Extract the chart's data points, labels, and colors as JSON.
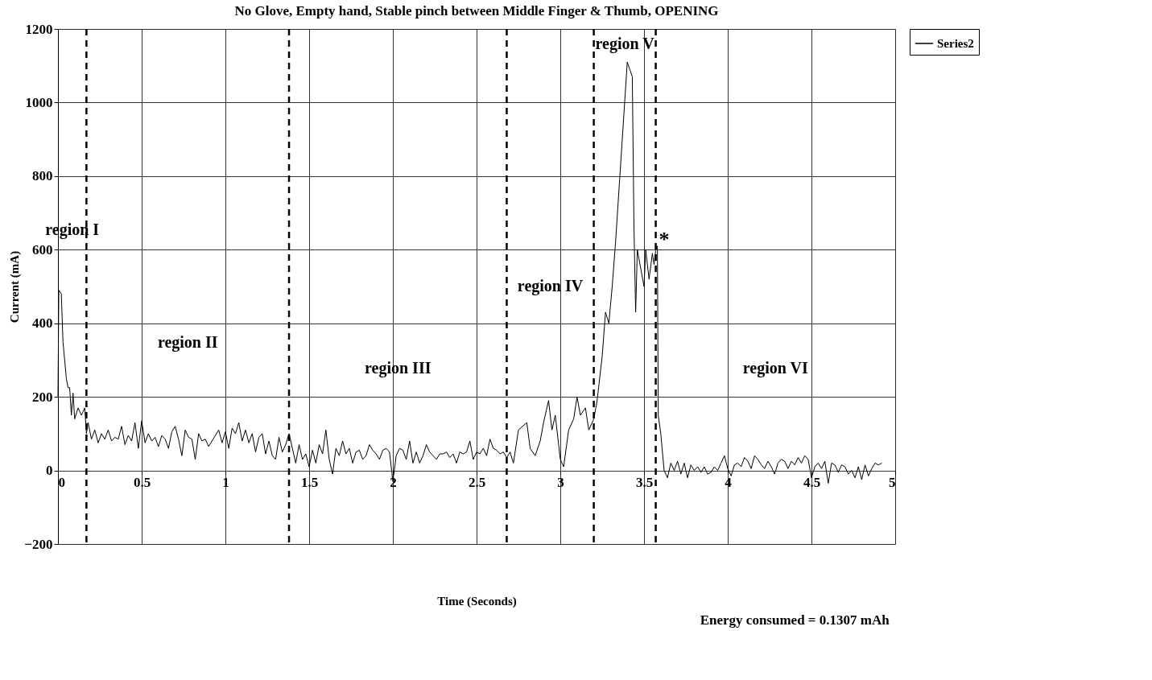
{
  "chart_data": {
    "type": "line",
    "title": "No Glove, Empty hand, Stable pinch between Middle Finger & Thumb, OPENING",
    "xlabel": "Time (Seconds)",
    "ylabel": "Current (mA)",
    "xlim": [
      0,
      5
    ],
    "xticks": [
      0,
      0.5,
      1,
      1.5,
      2,
      2.5,
      3,
      3.5,
      4,
      4.5,
      5
    ],
    "ylim": [
      -200,
      1200
    ],
    "yticks": [
      -200,
      0,
      200,
      400,
      600,
      800,
      1000,
      1200
    ],
    "grid": true,
    "legend": "right",
    "marker": "none",
    "line_style": "solid",
    "series": [
      {
        "name": "Series2",
        "color": "#000000",
        "x": [
          0,
          0.005,
          0.02,
          0.03,
          0.05,
          0.06,
          0.07,
          0.08,
          0.09,
          0.1,
          0.12,
          0.14,
          0.16,
          0.17,
          0.18,
          0.2,
          0.22,
          0.24,
          0.26,
          0.28,
          0.3,
          0.32,
          0.34,
          0.36,
          0.38,
          0.4,
          0.42,
          0.44,
          0.46,
          0.48,
          0.5,
          0.52,
          0.54,
          0.56,
          0.58,
          0.6,
          0.62,
          0.64,
          0.66,
          0.68,
          0.7,
          0.72,
          0.74,
          0.76,
          0.78,
          0.8,
          0.82,
          0.84,
          0.86,
          0.88,
          0.9,
          0.92,
          0.94,
          0.96,
          0.98,
          1.0,
          1.02,
          1.04,
          1.06,
          1.08,
          1.1,
          1.12,
          1.14,
          1.16,
          1.18,
          1.2,
          1.22,
          1.24,
          1.26,
          1.28,
          1.3,
          1.32,
          1.34,
          1.36,
          1.38,
          1.4,
          1.42,
          1.44,
          1.46,
          1.48,
          1.5,
          1.52,
          1.54,
          1.56,
          1.58,
          1.6,
          1.62,
          1.64,
          1.66,
          1.68,
          1.7,
          1.72,
          1.74,
          1.76,
          1.78,
          1.8,
          1.82,
          1.84,
          1.86,
          1.88,
          1.9,
          1.92,
          1.94,
          1.96,
          1.98,
          2.0,
          2.02,
          2.04,
          2.06,
          2.08,
          2.1,
          2.12,
          2.14,
          2.16,
          2.18,
          2.2,
          2.22,
          2.24,
          2.26,
          2.28,
          2.3,
          2.32,
          2.34,
          2.36,
          2.38,
          2.4,
          2.42,
          2.44,
          2.46,
          2.48,
          2.5,
          2.52,
          2.54,
          2.56,
          2.58,
          2.6,
          2.62,
          2.64,
          2.66,
          2.68,
          2.7,
          2.72,
          2.75,
          2.8,
          2.82,
          2.85,
          2.88,
          2.9,
          2.93,
          2.95,
          2.97,
          3.0,
          3.02,
          3.05,
          3.08,
          3.1,
          3.12,
          3.15,
          3.17,
          3.2,
          3.22,
          3.25,
          3.27,
          3.29,
          3.31,
          3.33,
          3.4,
          3.43,
          3.44,
          3.45,
          3.46,
          3.48,
          3.5,
          3.51,
          3.53,
          3.55,
          3.56,
          3.57,
          3.58,
          3.585,
          3.6,
          3.62,
          3.64,
          3.66,
          3.68,
          3.7,
          3.72,
          3.74,
          3.76,
          3.78,
          3.8,
          3.82,
          3.84,
          3.86,
          3.88,
          3.9,
          3.92,
          3.94,
          3.96,
          3.98,
          4.0,
          4.02,
          4.04,
          4.06,
          4.08,
          4.1,
          4.12,
          4.14,
          4.16,
          4.18,
          4.2,
          4.22,
          4.24,
          4.26,
          4.28,
          4.3,
          4.32,
          4.34,
          4.36,
          4.38,
          4.4,
          4.42,
          4.44,
          4.46,
          4.48,
          4.5,
          4.52,
          4.54,
          4.56,
          4.58,
          4.6,
          4.62,
          4.64,
          4.66,
          4.68,
          4.7,
          4.72,
          4.74,
          4.76,
          4.78,
          4.8,
          4.82,
          4.84,
          4.86,
          4.88,
          4.9,
          4.92
        ],
        "values": [
          200,
          490,
          480,
          350,
          250,
          225,
          225,
          150,
          210,
          140,
          170,
          150,
          170,
          100,
          130,
          85,
          110,
          75,
          100,
          85,
          110,
          80,
          90,
          85,
          120,
          70,
          95,
          80,
          130,
          60,
          135,
          75,
          100,
          80,
          90,
          65,
          95,
          85,
          60,
          105,
          120,
          85,
          40,
          110,
          90,
          85,
          30,
          100,
          80,
          85,
          65,
          80,
          95,
          110,
          75,
          105,
          60,
          115,
          100,
          130,
          80,
          110,
          75,
          100,
          50,
          90,
          100,
          45,
          80,
          40,
          30,
          90,
          50,
          70,
          100,
          60,
          20,
          70,
          30,
          45,
          10,
          55,
          20,
          70,
          45,
          110,
          30,
          -10,
          60,
          40,
          80,
          45,
          60,
          20,
          50,
          55,
          30,
          40,
          70,
          55,
          45,
          30,
          55,
          60,
          50,
          -30,
          40,
          60,
          55,
          30,
          80,
          20,
          50,
          20,
          40,
          70,
          50,
          40,
          30,
          45,
          45,
          50,
          35,
          45,
          20,
          50,
          45,
          50,
          80,
          30,
          50,
          45,
          60,
          40,
          85,
          60,
          55,
          45,
          50,
          35,
          50,
          20,
          110,
          130,
          60,
          40,
          80,
          130,
          190,
          110,
          150,
          30,
          10,
          110,
          140,
          200,
          150,
          170,
          110,
          140,
          190,
          310,
          430,
          400,
          500,
          620,
          1110,
          1070,
          660,
          430,
          600,
          550,
          500,
          600,
          520,
          590,
          560,
          600,
          610,
          150,
          100,
          0,
          -20,
          20,
          0,
          25,
          -10,
          20,
          -20,
          15,
          0,
          10,
          -5,
          10,
          -10,
          -5,
          10,
          0,
          20,
          40,
          5,
          -15,
          15,
          20,
          10,
          35,
          25,
          5,
          40,
          30,
          15,
          5,
          25,
          10,
          -10,
          20,
          30,
          25,
          5,
          25,
          15,
          35,
          20,
          40,
          30,
          -20,
          10,
          20,
          5,
          25,
          -35,
          20,
          15,
          -5,
          15,
          10,
          -10,
          0,
          -20,
          10,
          -25,
          15,
          -15,
          5,
          20,
          15,
          20
        ]
      }
    ],
    "ref_lines": [
      {
        "axis": "x",
        "value": 0.17,
        "color": "#000000",
        "line_style": "dashed"
      },
      {
        "axis": "x",
        "value": 1.38,
        "color": "#000000",
        "line_style": "dashed"
      },
      {
        "axis": "x",
        "value": 2.68,
        "color": "#000000",
        "line_style": "dashed"
      },
      {
        "axis": "x",
        "value": 3.2,
        "color": "#000000",
        "line_style": "dashed"
      },
      {
        "axis": "x",
        "value": 3.57,
        "color": "#000000",
        "line_style": "dashed"
      }
    ],
    "annotations": [
      "region I",
      "region II",
      "region III",
      "region IV",
      "region V",
      "region VI",
      "*",
      "Energy consumed = 0.1307 mAh"
    ]
  }
}
